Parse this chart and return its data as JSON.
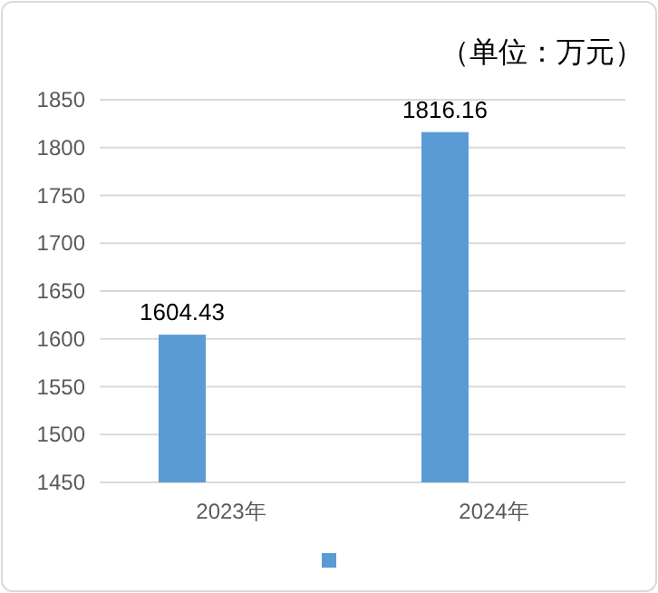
{
  "chart_data": {
    "type": "bar",
    "annotations": [
      "（单位：万元）"
    ],
    "categories": [
      "2023年",
      "2024年"
    ],
    "series": [
      {
        "color": "#5b9bd5",
        "values": [
          1604.43,
          1816.16
        ]
      }
    ],
    "ylim": [
      1450,
      1850
    ],
    "yticks": [
      1450,
      1500,
      1550,
      1600,
      1650,
      1700,
      1750,
      1800,
      1850
    ],
    "grid": "y",
    "data_labels": true
  }
}
